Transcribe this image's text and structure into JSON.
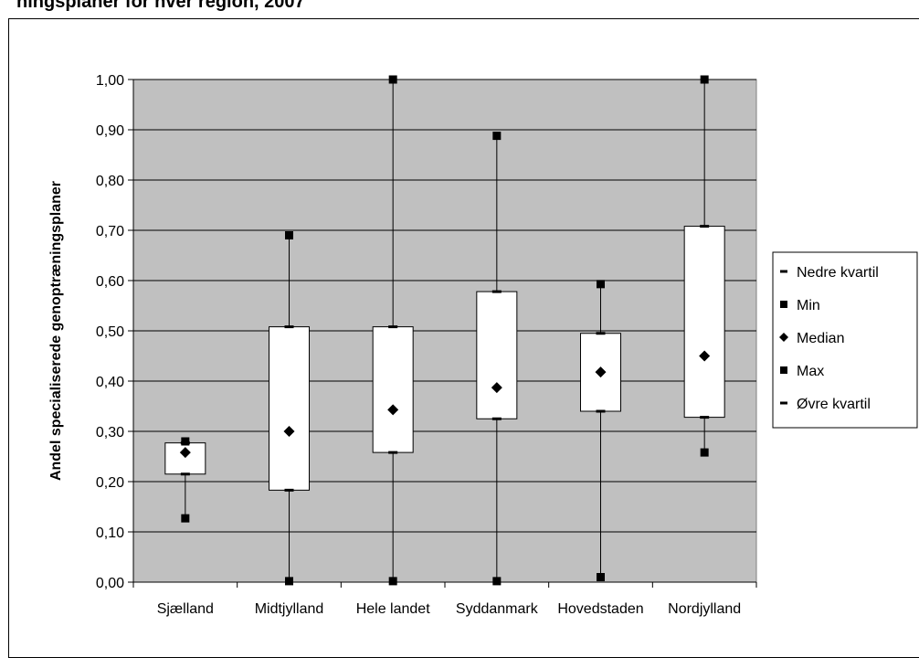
{
  "page": {
    "title_fragment": "ningsplaner for hver region, 2007"
  },
  "chart_data": {
    "type": "box",
    "ylabel": "Andel specialiserede genoptræningsplaner",
    "xlabel": "",
    "ylim": [
      0,
      1
    ],
    "yticks": [
      "0,00",
      "0,10",
      "0,20",
      "0,30",
      "0,40",
      "0,50",
      "0,60",
      "0,70",
      "0,80",
      "0,90",
      "1,00"
    ],
    "grid": true,
    "plot_background": "#c0c0c0",
    "legend_position": "right",
    "categories": [
      "Sjælland",
      "Midtjylland",
      "Hele landet",
      "Syddanmark",
      "Hovedstaden",
      "Nordjylland"
    ],
    "series": [
      {
        "name": "Nedre kvartil",
        "marker": "dash",
        "values": [
          0.215,
          0.183,
          0.258,
          0.325,
          0.34,
          0.328
        ]
      },
      {
        "name": "Min",
        "marker": "square",
        "values": [
          0.127,
          0.002,
          0.002,
          0.002,
          0.01,
          0.258
        ]
      },
      {
        "name": "Median",
        "marker": "diamond",
        "values": [
          0.258,
          0.3,
          0.343,
          0.387,
          0.418,
          0.45
        ]
      },
      {
        "name": "Max",
        "marker": "square",
        "values": [
          0.28,
          0.69,
          1.0,
          0.888,
          0.593,
          1.0
        ]
      },
      {
        "name": "Øvre kvartil",
        "marker": "dash",
        "values": [
          0.277,
          0.508,
          0.508,
          0.578,
          0.495,
          0.708
        ]
      }
    ]
  }
}
